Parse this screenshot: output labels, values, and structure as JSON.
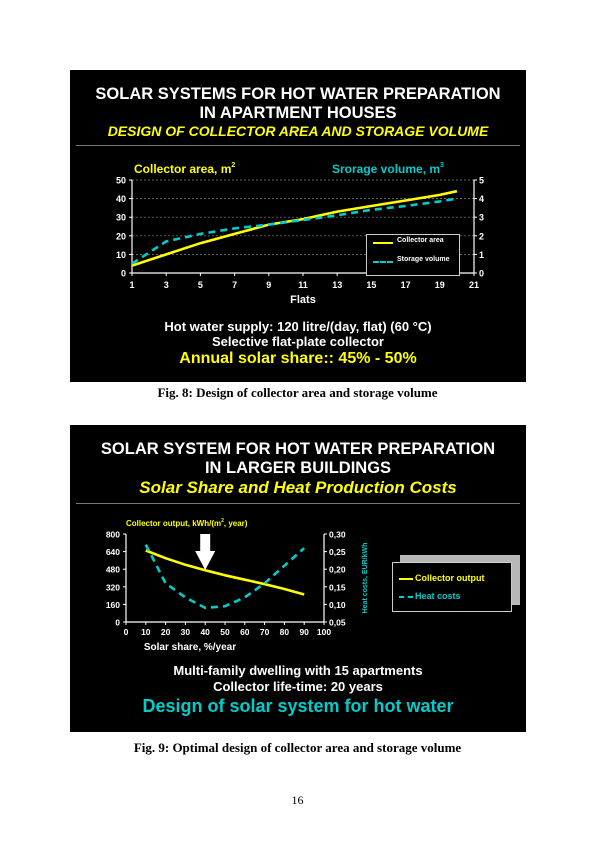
{
  "figure1": {
    "title_line1": "SOLAR SYSTEMS FOR HOT WATER PREPARATION",
    "title_line2": "IN APARTMENT HOUSES",
    "subtitle": "DESIGN OF COLLECTOR AREA AND STORAGE VOLUME",
    "left_axis_label": "Collector area, m",
    "left_axis_sup": "2",
    "right_axis_label": "Srorage volume, m",
    "right_axis_sup": "3",
    "info_line1": "Hot water supply: 120 litre/(day, flat) (60 °C)",
    "info_line2": "Selective flat-plate collector",
    "info_line3": "Annual solar share:: 45% - 50%",
    "caption": "Fig. 8: Design of collector area and storage volume",
    "colors": {
      "series1": "#ffff00",
      "series2": "#00cccc",
      "background": "#000000"
    }
  },
  "figure2": {
    "title_line1": "SOLAR SYSTEM FOR HOT WATER PREPARATION",
    "title_line2": "IN LARGER BUILDINGS",
    "subtitle": "Solar Share and Heat Production Costs",
    "left_axis_label": "Collector output, kWh/(m",
    "left_axis_sup": "2",
    "left_axis_label_end": ", year)",
    "info_line1": "Multi-family dwelling with 15 apartments",
    "info_line2": "Collector life-time: 20 years",
    "info_line3": "Design of solar system for hot water",
    "caption": "Fig. 9: Optimal design of collector area and storage volume",
    "arrow_icon": "down-arrow-icon",
    "colors": {
      "series1": "#ffff00",
      "series2": "#00cccc",
      "background": "#000000"
    }
  },
  "page_number": "16",
  "chart_data": [
    {
      "type": "line",
      "xlabel": "Flats",
      "ylabel": "Collector area, m²",
      "y2label": "Srorage volume, m³",
      "xlim": [
        1,
        21
      ],
      "ylim": [
        0,
        50
      ],
      "y2lim": [
        0,
        5
      ],
      "xticks": [
        1,
        3,
        5,
        7,
        9,
        11,
        13,
        15,
        17,
        19,
        21
      ],
      "yticks": [
        0,
        10,
        20,
        30,
        40,
        50
      ],
      "y2ticks": [
        0,
        1,
        2,
        3,
        4,
        5
      ],
      "grid": true,
      "legend_position": "bottom-right",
      "series": [
        {
          "name": "Collector area",
          "axis": "left",
          "style": "solid",
          "x": [
            1,
            3,
            5,
            7,
            9,
            11,
            13,
            15,
            17,
            19,
            20
          ],
          "y": [
            4,
            10,
            16,
            21,
            26,
            29,
            33,
            36,
            39,
            42,
            44
          ]
        },
        {
          "name": "Storage volume",
          "axis": "right",
          "style": "dashed",
          "x": [
            1,
            3,
            5,
            7,
            9,
            11,
            13,
            15,
            17,
            19,
            20
          ],
          "y": [
            0.5,
            1.7,
            2.1,
            2.4,
            2.6,
            2.85,
            3.1,
            3.4,
            3.6,
            3.85,
            4.0
          ]
        }
      ]
    },
    {
      "type": "line",
      "xlabel": "Solar share, %/year",
      "ylabel": "Collector output, kWh/(m², year)",
      "y2label": "Heat costs, EUR/kWh",
      "xlim": [
        0,
        100
      ],
      "ylim": [
        0,
        800
      ],
      "y2lim": [
        0.05,
        0.3
      ],
      "xticks": [
        0,
        10,
        20,
        30,
        40,
        50,
        60,
        70,
        80,
        90,
        100
      ],
      "yticks": [
        0,
        160,
        320,
        480,
        640,
        800
      ],
      "y2ticks": [
        "0,05",
        "0,10",
        "0,15",
        "0,20",
        "0,25",
        "0,30"
      ],
      "grid": false,
      "legend_position": "right",
      "annotation": "arrow at 40 %",
      "series": [
        {
          "name": "Collector output",
          "axis": "left",
          "style": "solid",
          "x": [
            10,
            20,
            30,
            40,
            50,
            60,
            70,
            80,
            90
          ],
          "y": [
            650,
            580,
            520,
            470,
            425,
            385,
            345,
            300,
            250
          ]
        },
        {
          "name": "Heat costs",
          "axis": "right",
          "style": "dashed",
          "x": [
            10,
            20,
            30,
            40,
            50,
            60,
            70,
            80,
            90
          ],
          "y": [
            0.27,
            0.16,
            0.12,
            0.09,
            0.095,
            0.12,
            0.16,
            0.21,
            0.26
          ]
        }
      ]
    }
  ]
}
